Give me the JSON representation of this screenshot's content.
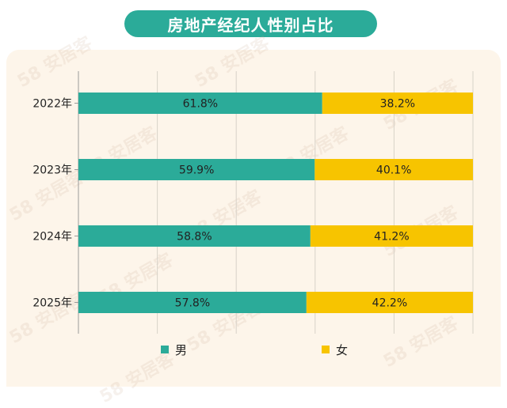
{
  "chart_data": {
    "type": "bar",
    "stacked": true,
    "orientation": "horizontal",
    "title": "房地产经纪人性别占比",
    "categories": [
      "2022年",
      "2023年",
      "2024年",
      "2025年"
    ],
    "series": [
      {
        "name": "男",
        "values": [
          61.8,
          59.9,
          58.8,
          57.8
        ],
        "labels": [
          "61.8%",
          "59.9%",
          "58.8%",
          "57.8%"
        ],
        "color": "#2bab99"
      },
      {
        "name": "女",
        "values": [
          38.2,
          40.1,
          41.2,
          42.2
        ],
        "labels": [
          "38.2%",
          "40.1%",
          "41.2%",
          "42.2%"
        ],
        "color": "#f7c400"
      }
    ],
    "xlim": [
      0,
      100
    ],
    "grid": true,
    "legend_position": "bottom"
  },
  "watermark": "58 安居客"
}
